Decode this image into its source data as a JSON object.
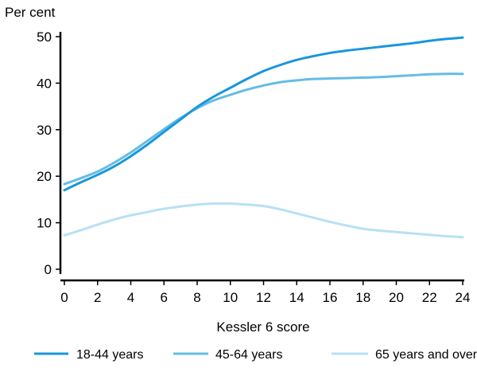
{
  "chart_data": {
    "type": "line",
    "title": "",
    "ylabel": "Per cent",
    "xlabel": "Kessler 6 score",
    "xlim": [
      0,
      24
    ],
    "ylim": [
      0,
      50
    ],
    "xticks": [
      "0",
      "2",
      "4",
      "6",
      "8",
      "10",
      "12",
      "14",
      "16",
      "18",
      "20",
      "22",
      "24"
    ],
    "yticks": [
      "0",
      "10",
      "20",
      "30",
      "40",
      "50"
    ],
    "grid": false,
    "legend_position": "bottom",
    "x": [
      0,
      1,
      2,
      3,
      4,
      5,
      6,
      7,
      8,
      9,
      10,
      11,
      12,
      13,
      14,
      15,
      16,
      17,
      18,
      19,
      20,
      21,
      22,
      23,
      24
    ],
    "series": [
      {
        "name": "18-44 years",
        "color": "#1a96dc",
        "values": [
          17.0,
          18.7,
          20.3,
          22.1,
          24.3,
          26.8,
          29.5,
          32.2,
          34.9,
          37.1,
          39.0,
          40.9,
          42.6,
          43.9,
          45.0,
          45.8,
          46.5,
          47.0,
          47.4,
          47.8,
          48.2,
          48.6,
          49.1,
          49.5,
          49.8
        ]
      },
      {
        "name": "45-64 years",
        "color": "#64bce6",
        "values": [
          18.3,
          19.6,
          21.0,
          22.9,
          25.1,
          27.6,
          30.1,
          32.5,
          34.6,
          36.3,
          37.5,
          38.6,
          39.5,
          40.2,
          40.6,
          40.9,
          41.0,
          41.1,
          41.2,
          41.3,
          41.5,
          41.7,
          41.9,
          42.0,
          42.0
        ]
      },
      {
        "name": "65 years and over",
        "color": "#b8e0f4",
        "values": [
          7.3,
          8.4,
          9.6,
          10.7,
          11.6,
          12.3,
          13.0,
          13.5,
          13.9,
          14.1,
          14.1,
          13.9,
          13.6,
          12.9,
          12.0,
          11.1,
          10.2,
          9.4,
          8.7,
          8.3,
          8.0,
          7.7,
          7.4,
          7.1,
          6.9
        ]
      }
    ]
  }
}
